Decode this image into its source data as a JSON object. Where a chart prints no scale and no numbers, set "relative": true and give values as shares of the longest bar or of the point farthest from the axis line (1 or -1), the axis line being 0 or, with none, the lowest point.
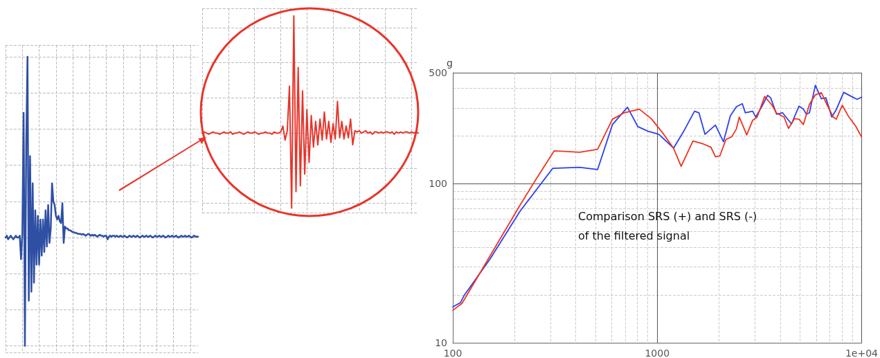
{
  "chart_data": [
    {
      "type": "line",
      "relative": true,
      "grid": true,
      "marker": "none",
      "line_style": "solid",
      "categories": [
        null,
        null,
        null,
        null,
        null,
        null,
        null,
        null,
        null,
        null,
        null,
        null,
        null,
        null,
        null,
        null,
        null,
        null,
        null,
        null,
        null,
        null,
        null,
        null,
        null,
        null,
        null,
        null,
        null,
        null,
        null,
        null,
        null,
        null,
        null,
        null,
        null,
        null,
        null,
        null,
        null,
        null,
        null,
        null,
        null,
        null,
        null,
        null,
        null,
        null,
        null,
        null,
        null,
        null,
        null,
        null,
        null,
        null,
        null,
        null,
        null,
        null,
        null,
        null,
        null,
        null,
        null,
        null,
        null,
        null,
        null,
        null,
        null,
        null,
        null,
        null,
        null,
        null,
        null,
        null,
        null,
        null,
        null,
        null,
        null,
        null,
        null,
        null,
        null,
        null,
        null,
        null,
        null,
        null,
        null,
        null,
        null,
        null,
        null,
        null,
        null,
        null,
        null,
        null,
        null,
        null,
        null,
        null,
        null,
        null,
        null,
        null,
        null,
        null,
        null,
        null,
        null,
        null,
        null,
        null,
        null,
        null,
        null,
        null,
        null,
        null,
        null,
        null,
        null,
        null,
        null,
        null,
        null,
        null,
        null,
        null,
        null,
        null,
        null,
        null,
        null,
        null,
        null,
        null,
        null,
        null,
        null,
        null,
        null,
        null
      ],
      "series": [
        {
          "color": "#2e4fa3",
          "values": [
            0,
            0.01,
            -0.01,
            0,
            0.01,
            0,
            -0.01,
            0,
            0.01,
            0,
            0,
            0.01,
            -0.12,
            0.02,
            0.69,
            -0.6,
            0.51,
            1,
            -0.35,
            0.45,
            -0.3,
            0.3,
            -0.25,
            0.15,
            -0.15,
            0.12,
            -0.15,
            0.1,
            -0.1,
            0.1,
            -0.08,
            0.15,
            -0.05,
            0.18,
            -0.03,
            0.05,
            0.3,
            0.2,
            0.18,
            0.12,
            0.1,
            0.12,
            0.09,
            0.08,
            0.19,
            -0.03,
            0.06,
            0.05,
            0.05,
            0.04,
            0.04,
            0.035,
            0.03,
            0.03,
            0.025,
            0.025,
            0.02,
            0.02,
            0.02,
            0.015,
            0.02,
            0.015,
            0.01,
            0.015,
            0.02,
            0.015,
            0.01,
            0.015,
            0.01,
            0.015,
            0.01,
            0.005,
            0.01,
            0.015,
            0.01,
            0.01,
            0.005,
            0.01,
            0.01,
            -0.01,
            0.005,
            0.01,
            0.005,
            0.01,
            0.01,
            0.005,
            0.01,
            0.005,
            0.005,
            0.01,
            0.005,
            0.005,
            0.01,
            0.005,
            0,
            0.005,
            0.01,
            0.005,
            0.005,
            0.01,
            0.005,
            0.005,
            0.01,
            0.005,
            0,
            0.005,
            0.01,
            0.005,
            0.005,
            0.01,
            0.005,
            0.005,
            0.01,
            0.005,
            0,
            0.005,
            0.01,
            0.005,
            0.005,
            0.01,
            0.005,
            0.005,
            0.01,
            0.005,
            0,
            0.005,
            0.01,
            0.005,
            0.005,
            0.01,
            0.005,
            0.005,
            0.01,
            0.005,
            0,
            0.005,
            0.01,
            0.005,
            0.005,
            0.01,
            0.005,
            0.005,
            0.01,
            0.005,
            0,
            0.005,
            0.01,
            0.005,
            0.005,
            0.005
          ]
        }
      ]
    },
    {
      "type": "line",
      "relative": true,
      "grid": true,
      "marker": "none",
      "line_style": "solid",
      "categories": [
        null,
        null,
        null,
        null,
        null,
        null,
        null,
        null,
        null,
        null,
        null,
        null,
        null,
        null,
        null,
        null,
        null,
        null,
        null,
        null,
        null,
        null,
        null,
        null,
        null,
        null,
        null,
        null,
        null,
        null,
        null,
        null,
        null,
        null,
        null,
        null,
        null,
        null,
        null,
        null,
        null,
        null,
        null,
        null,
        null,
        null,
        null,
        null,
        null,
        null,
        null,
        null,
        null,
        null,
        null,
        null,
        null,
        null,
        null,
        null,
        null,
        null,
        null,
        null,
        null,
        null,
        null,
        null,
        null,
        null,
        null,
        null,
        null,
        null,
        null,
        null,
        null,
        null,
        null,
        null,
        null,
        null,
        null,
        null,
        null,
        null,
        null,
        null,
        null,
        null,
        null,
        null,
        null,
        null,
        null,
        null,
        null,
        null,
        null,
        null
      ],
      "series": [
        {
          "color": "#e8342a",
          "values": [
            0,
            0.01,
            0,
            -0.01,
            0,
            0.01,
            0,
            0,
            -0.01,
            0,
            0.01,
            0,
            0,
            0.01,
            -0.01,
            0,
            0,
            0.01,
            0,
            -0.01,
            0,
            0.01,
            0,
            0,
            0.01,
            0,
            -0.01,
            0,
            0,
            0.01,
            0,
            0,
            -0.01,
            0.01,
            0,
            0,
            0.01,
            0.06,
            -0.06,
            0.02,
            0.4,
            -0.64,
            1,
            -0.5,
            0.56,
            -0.45,
            0.36,
            -0.35,
            0.2,
            -0.25,
            0.15,
            -0.12,
            0.1,
            -0.1,
            0.12,
            -0.06,
            0.18,
            -0.05,
            0.1,
            -0.08,
            0.08,
            -0.05,
            0.27,
            -0.04,
            0.1,
            -0.05,
            0.06,
            -0.04,
            0.12,
            -0.1,
            0.02,
            0.01,
            0.02,
            0,
            0.01,
            0.02,
            0,
            0.01,
            -0.01,
            0.01,
            0.01,
            0,
            0.01,
            0,
            0.01,
            0.01,
            0,
            0.01,
            -0.01,
            0.01,
            0,
            0.01,
            0,
            0.01,
            0.01,
            0,
            0.01,
            0,
            0.01,
            0
          ]
        }
      ]
    },
    {
      "type": "line",
      "ylabel": "g",
      "log": "xy",
      "grid": true,
      "marker": "none",
      "line_style": "solid",
      "xlim": [
        100,
        10000
      ],
      "xticks": [
        100,
        1000,
        {
          "value": 10000,
          "label": "1e+04"
        }
      ],
      "ylim": [
        10,
        500
      ],
      "yticks": [
        10,
        100,
        500
      ],
      "annotations": [
        "Comparison SRS (+) and SRS (-) of the filtered signal"
      ],
      "series": [
        {
          "color": "#2b3ff0",
          "x": [
            100,
            109,
            114,
            152,
            213,
            308,
            417,
            511,
            604,
            715,
            804,
            904,
            1017,
            1203,
            1353,
            1522,
            1600,
            1713,
            1926,
            2109,
            2279,
            2438,
            2607,
            2696,
            2931,
            3033,
            3243,
            3467,
            3586,
            3837,
            4102,
            4538,
            4936,
            5190,
            5370,
            5553,
            5938,
            6353,
            6683,
            7145,
            7515,
            8170,
            8890,
            9506,
            10000
          ],
          "values": [
            16.8,
            17.9,
            20.0,
            33.6,
            67.1,
            125,
            127,
            123,
            236,
            303,
            229,
            214,
            205,
            168,
            216,
            286,
            280,
            205,
            234,
            184,
            268,
            305,
            319,
            280,
            286,
            263,
            305,
            360,
            348,
            274,
            280,
            238,
            308,
            295,
            274,
            280,
            417,
            343,
            348,
            263,
            293,
            376,
            355,
            340,
            351
          ]
        },
        {
          "color": "#f0321e",
          "x": [
            100,
            111,
            152,
            213,
            252,
            313,
            353,
            417,
            511,
            604,
            691,
            817,
            935,
            1070,
            1203,
            1309,
            1496,
            1683,
            1832,
            1926,
            2026,
            2167,
            2317,
            2438,
            2521,
            2742,
            2931,
            3083,
            3353,
            3648,
            3837,
            4173,
            4387,
            4694,
            4936,
            5190,
            5553,
            5938,
            6353,
            6792,
            7262,
            7515,
            8036,
            8590,
            9346,
            10000
          ],
          "values": [
            16.0,
            17.7,
            35.1,
            73.2,
            104,
            161,
            160,
            158,
            165,
            255,
            280,
            295,
            257,
            207,
            167,
            129,
            186,
            178,
            170,
            148,
            150,
            190,
            198,
            221,
            263,
            203,
            251,
            263,
            354,
            312,
            278,
            263,
            223,
            257,
            255,
            236,
            316,
            363,
            374,
            312,
            263,
            255,
            312,
            268,
            231,
            197
          ]
        }
      ]
    }
  ]
}
